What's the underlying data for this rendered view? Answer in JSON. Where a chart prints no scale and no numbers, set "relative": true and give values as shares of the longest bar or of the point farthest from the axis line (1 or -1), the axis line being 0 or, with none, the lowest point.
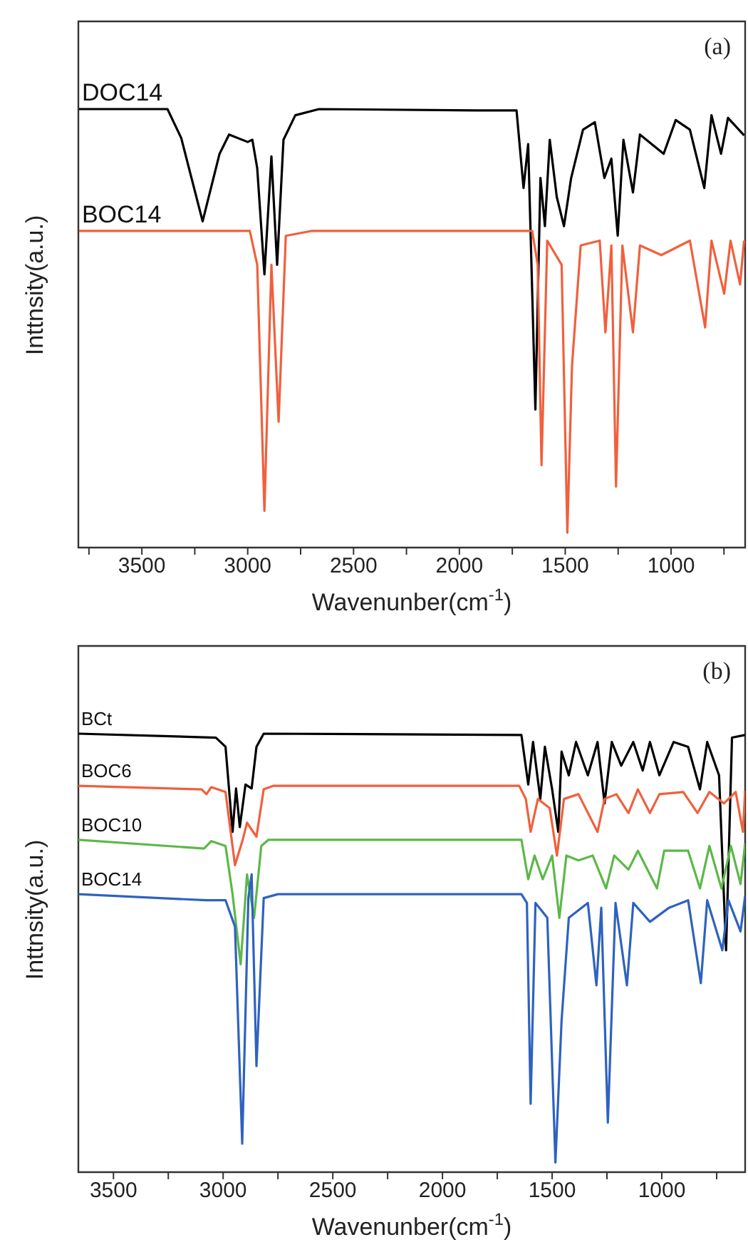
{
  "chart_data": [
    {
      "type": "line",
      "relative": true,
      "xlabel": "Wavenunber(cm$^{-1}$)",
      "ylabel": "Inttnsity(a.u.)",
      "annotations": [
        "(a)"
      ],
      "marker": "none",
      "line_style": "solid",
      "xlim": [
        3800,
        650
      ],
      "xticks": [
        {
          "value": 3750,
          "label": null
        },
        3500,
        {
          "value": 3250,
          "label": null
        },
        3000,
        {
          "value": 2750,
          "label": null
        },
        2500,
        {
          "value": 2250,
          "label": null
        },
        2000,
        {
          "value": 1750,
          "label": null
        },
        1500,
        {
          "value": 1250,
          "label": null
        },
        1000,
        {
          "value": 750,
          "label": null
        }
      ],
      "series": [
        {
          "name": "DOC14",
          "color": "#000000",
          "x": [
            3797,
            3379,
            3314,
            3213,
            3133,
            3088,
            3000,
            2978,
            2955,
            2921,
            2888,
            2861,
            2831,
            2775,
            2663,
            1924,
            1730,
            1697,
            1675,
            1641,
            1617,
            1596,
            1573,
            1540,
            1506,
            1472,
            1416,
            1360,
            1315,
            1282,
            1252,
            1225,
            1180,
            1147,
            1035,
            978,
            911,
            843,
            809,
            764,
            731,
            655
          ],
          "values": [
            1,
            1,
            0.934,
            0.744,
            0.898,
            0.942,
            0.925,
            0.93,
            0.865,
            0.623,
            0.892,
            0.645,
            0.93,
            0.986,
            1,
            0.997,
            0.997,
            0.82,
            0.92,
            0.315,
            0.843,
            0.733,
            0.93,
            0.8,
            0.733,
            0.843,
            0.953,
            0.97,
            0.843,
            0.887,
            0.711,
            0.93,
            0.81,
            0.942,
            0.898,
            0.975,
            0.953,
            0.82,
            0.986,
            0.898,
            0.98,
            0.94
          ]
        },
        {
          "name": "BOC14",
          "color": "#f0603c",
          "x": [
            3797,
            2990,
            2955,
            2921,
            2888,
            2854,
            2820,
            2700,
            1656,
            1630,
            1612,
            1585,
            1517,
            1490,
            1468,
            1427,
            1337,
            1310,
            1282,
            1260,
            1230,
            1180,
            1147,
            1046,
            911,
            839,
            809,
            749,
            719,
            674,
            655
          ],
          "values": [
            0.722,
            0.722,
            0.645,
            0.084,
            0.645,
            0.287,
            0.711,
            0.722,
            0.722,
            0.645,
            0.188,
            0.7,
            0.645,
            0.034,
            0.414,
            0.689,
            0.7,
            0.491,
            0.689,
            0.139,
            0.689,
            0.491,
            0.689,
            0.667,
            0.7,
            0.502,
            0.7,
            0.579,
            0.7,
            0.6,
            0.7
          ]
        }
      ]
    },
    {
      "type": "line",
      "relative": true,
      "xlabel": "Wavenunber(cm$^{-1}$)",
      "ylabel": "Inttnsity(a.u.)",
      "annotations": [
        "(b)"
      ],
      "marker": "none",
      "line_style": "solid",
      "xlim": [
        3660,
        620
      ],
      "xticks": [
        3500,
        {
          "value": 3250,
          "label": null
        },
        3000,
        {
          "value": 2750,
          "label": null
        },
        2500,
        {
          "value": 2250,
          "label": null
        },
        2000,
        {
          "value": 1750,
          "label": null
        },
        1500,
        {
          "value": 1250,
          "label": null
        },
        1000,
        {
          "value": 750,
          "label": null
        }
      ],
      "series": [
        {
          "name": "BCt",
          "color": "#000000",
          "x": [
            3660,
            3033,
            2989,
            2957,
            2941,
            2924,
            2898,
            2870,
            2848,
            2815,
            1640,
            1609,
            1587,
            1554,
            1533,
            1500,
            1472,
            1457,
            1424,
            1391,
            1337,
            1293,
            1261,
            1228,
            1185,
            1130,
            1087,
            1054,
            1011,
            946,
            880,
            826,
            793,
            739,
            707,
            680,
            620
          ],
          "values": [
            1,
            0.991,
            0.97,
            0.776,
            0.875,
            0.787,
            0.884,
            0.875,
            0.97,
            1,
            0.997,
            0.884,
            0.981,
            0.851,
            0.97,
            0.873,
            0.776,
            0.959,
            0.905,
            0.981,
            0.905,
            0.981,
            0.841,
            0.981,
            0.927,
            0.981,
            0.916,
            0.981,
            0.905,
            0.981,
            0.97,
            0.873,
            0.981,
            0.905,
            0.506,
            0.991,
            0.997
          ]
        },
        {
          "name": "BOC6",
          "color": "#f0603c",
          "x": [
            3660,
            3098,
            3076,
            3054,
            2989,
            2946,
            2913,
            2891,
            2863,
            2848,
            2815,
            2772,
            1650,
            1620,
            1598,
            1565,
            1511,
            1478,
            1446,
            1380,
            1293,
            1261,
            1207,
            1152,
            1109,
            1054,
            1011,
            902,
            837,
            783,
            717,
            663,
            630,
            620
          ],
          "values": [
            0.881,
            0.873,
            0.862,
            0.878,
            0.867,
            0.7,
            0.754,
            0.797,
            0.776,
            0.765,
            0.873,
            0.881,
            0.881,
            0.851,
            0.776,
            0.851,
            0.83,
            0.722,
            0.851,
            0.862,
            0.776,
            0.851,
            0.862,
            0.819,
            0.873,
            0.819,
            0.862,
            0.867,
            0.819,
            0.867,
            0.841,
            0.867,
            0.776,
            0.87
          ]
        },
        {
          "name": "BOC10",
          "color": "#5cb848",
          "x": [
            3660,
            3087,
            3054,
            2989,
            2957,
            2920,
            2891,
            2859,
            2826,
            2793,
            1640,
            1609,
            1580,
            1543,
            1500,
            1467,
            1435,
            1380,
            1315,
            1254,
            1217,
            1152,
            1109,
            1022,
            989,
            880,
            826,
            783,
            728,
            685,
            641,
            620
          ],
          "values": [
            0.758,
            0.738,
            0.755,
            0.744,
            0.634,
            0.474,
            0.679,
            0.58,
            0.744,
            0.758,
            0.758,
            0.668,
            0.722,
            0.668,
            0.722,
            0.58,
            0.722,
            0.711,
            0.722,
            0.647,
            0.722,
            0.69,
            0.733,
            0.647,
            0.733,
            0.733,
            0.647,
            0.744,
            0.647,
            0.744,
            0.657,
            0.75
          ]
        },
        {
          "name": "BOC14",
          "color": "#2e62c0",
          "x": [
            3660,
            3076,
            2989,
            2946,
            2913,
            2885,
            2870,
            2848,
            2815,
            2750,
            1640,
            1615,
            1598,
            1576,
            1522,
            1485,
            1457,
            1424,
            1337,
            1298,
            1276,
            1246,
            1211,
            1159,
            1130,
            1054,
            967,
            880,
            822,
            793,
            724,
            696,
            641,
            620
          ],
          "values": [
            0.634,
            0.62,
            0.62,
            0.56,
            0.065,
            0.625,
            0.679,
            0.242,
            0.625,
            0.634,
            0.634,
            0.614,
            0.156,
            0.614,
            0.58,
            0.022,
            0.345,
            0.58,
            0.614,
            0.426,
            0.603,
            0.113,
            0.614,
            0.426,
            0.614,
            0.571,
            0.603,
            0.62,
            0.431,
            0.62,
            0.506,
            0.62,
            0.549,
            0.63
          ]
        }
      ]
    }
  ]
}
